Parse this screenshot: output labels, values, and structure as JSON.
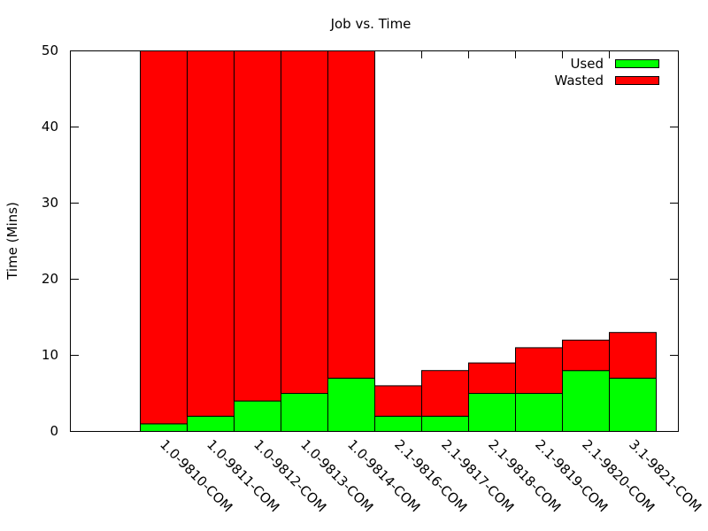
{
  "chart_data": {
    "type": "bar",
    "stacked": true,
    "title": "Job vs. Time",
    "xlabel": "",
    "ylabel": "Time (Mins)",
    "ylim": [
      0,
      50
    ],
    "yticks": [
      0,
      10,
      20,
      30,
      40,
      50
    ],
    "grid": false,
    "legend_position": "top-right",
    "categories": [
      "1.0-9810-COM",
      "1.0-9811-COM",
      "1.0-9812-COM",
      "1.0-9813-COM",
      "1.0-9814-COM",
      "2.1-9816-COM",
      "2.1-9817-COM",
      "2.1-9818-COM",
      "2.1-9819-COM",
      "2.1-9820-COM",
      "3.1-9821-COM"
    ],
    "series": [
      {
        "name": "Used",
        "color": "#00ff00",
        "values": [
          1,
          2,
          4,
          5,
          7,
          2,
          2,
          5,
          5,
          8,
          7
        ]
      },
      {
        "name": "Wasted",
        "color": "#ff0000",
        "values": [
          49,
          48,
          46,
          45,
          43,
          4,
          6,
          4,
          6,
          4,
          6
        ]
      }
    ]
  }
}
